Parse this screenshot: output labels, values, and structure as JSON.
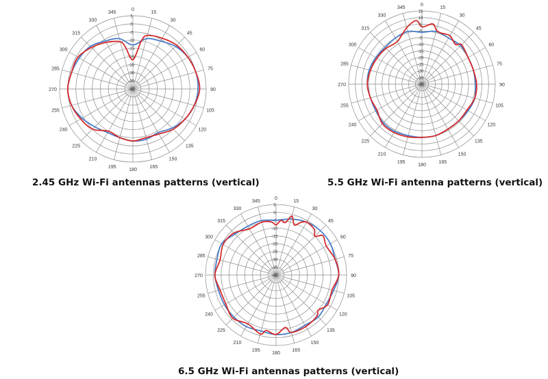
{
  "colors": {
    "series_a": "#4a7ec8",
    "series_b": "#d42a2a",
    "grid": "#8a8a8a",
    "label": "#333333"
  },
  "chart_data": [
    {
      "type": "polar-line",
      "title": "2.45 GHz Wi-Fi antennas patterns (vertical)",
      "angle_ticks": [
        "0",
        "15",
        "30",
        "45",
        "60",
        "75",
        "90",
        "105",
        "120",
        "135",
        "150",
        "165",
        "180",
        "195",
        "210",
        "225",
        "240",
        "255",
        "270",
        "285",
        "300",
        "315",
        "330",
        "345"
      ],
      "radial_ticks": [
        "5",
        "0",
        "-5",
        "-10",
        "-15",
        "-20",
        "-25",
        "-30",
        "-35",
        "-40"
      ],
      "radial_range": [
        -40,
        5
      ],
      "legend": "none",
      "series": [
        {
          "color": "series_a",
          "angles": [
            0,
            15,
            30,
            45,
            60,
            75,
            90,
            105,
            120,
            135,
            150,
            165,
            180,
            195,
            210,
            225,
            240,
            255,
            270,
            285,
            300,
            315,
            330,
            345
          ],
          "values": [
            -13,
            -8,
            -6,
            -3,
            -1,
            0,
            0,
            -1,
            -3,
            -6,
            -9,
            -8,
            -8,
            -9,
            -9,
            -7,
            -4,
            -1,
            0,
            -1,
            -2,
            -3,
            -6,
            -8
          ]
        },
        {
          "color": "series_b",
          "angles": [
            0,
            10,
            15,
            30,
            45,
            60,
            75,
            90,
            105,
            120,
            135,
            150,
            165,
            180,
            195,
            210,
            225,
            240,
            255,
            270,
            285,
            300,
            315,
            330,
            345,
            350
          ],
          "values": [
            -22,
            -10,
            -6,
            -4,
            -2,
            -1,
            0,
            1,
            -1,
            -3,
            -5,
            -8,
            -9,
            -8,
            -9,
            -10,
            -5,
            -3,
            -1,
            0,
            -1,
            -1,
            -4,
            -7,
            -10,
            -14
          ]
        }
      ]
    },
    {
      "type": "polar-line",
      "title": "5.5 GHz Wi-Fi antenna patterns (vertical)",
      "angle_ticks": [
        "0",
        "15",
        "30",
        "45",
        "60",
        "75",
        "90",
        "105",
        "120",
        "135",
        "150",
        "165",
        "180",
        "195",
        "210",
        "225",
        "240",
        "255",
        "270",
        "285",
        "300",
        "315",
        "330",
        "345"
      ],
      "radial_ticks": [
        "15",
        "10",
        "5",
        "0",
        "-5",
        "-10",
        "-15",
        "-20",
        "-25",
        "-30",
        "-35",
        "-40"
      ],
      "radial_range": [
        -40,
        15
      ],
      "legend": "none",
      "series": [
        {
          "color": "series_a",
          "angles": [
            0,
            15,
            30,
            45,
            60,
            75,
            90,
            105,
            120,
            135,
            150,
            165,
            180,
            195,
            210,
            225,
            240,
            255,
            270,
            285,
            300,
            315,
            330,
            345
          ],
          "values": [
            -1,
            1,
            0,
            1,
            0,
            0,
            0,
            1,
            0,
            -1,
            -1,
            0,
            0,
            0,
            1,
            1,
            0,
            0,
            1,
            1,
            0,
            -1,
            0,
            1
          ]
        },
        {
          "color": "series_b",
          "angles": [
            0,
            10,
            15,
            20,
            30,
            40,
            45,
            60,
            75,
            90,
            105,
            120,
            135,
            150,
            165,
            180,
            195,
            210,
            225,
            240,
            255,
            270,
            285,
            300,
            315,
            330,
            345,
            355
          ],
          "values": [
            3,
            6,
            2,
            1,
            2,
            -1,
            2,
            0,
            0,
            1,
            1,
            -1,
            -1,
            -1,
            0,
            0,
            1,
            2,
            2,
            -1,
            0,
            1,
            0,
            -1,
            -2,
            -3,
            4,
            8
          ]
        }
      ]
    },
    {
      "type": "polar-line",
      "title": "6.5 GHz Wi-Fi antennas patterns (vertical)",
      "angle_ticks": [
        "0",
        "15",
        "30",
        "45",
        "60",
        "75",
        "90",
        "105",
        "120",
        "135",
        "150",
        "165",
        "180",
        "195",
        "210",
        "225",
        "240",
        "255",
        "270",
        "285",
        "300",
        "315",
        "330",
        "345"
      ],
      "radial_ticks": [
        "5",
        "0",
        "-5",
        "-10",
        "-15",
        "-20",
        "-25",
        "-30",
        "-35",
        "-40"
      ],
      "radial_range": [
        -40,
        5
      ],
      "legend": "none",
      "series": [
        {
          "color": "series_a",
          "angles": [
            0,
            15,
            30,
            45,
            60,
            75,
            90,
            105,
            120,
            135,
            150,
            165,
            180,
            195,
            210,
            225,
            240,
            255,
            270,
            285,
            300,
            315,
            330,
            345
          ],
          "values": [
            -5,
            -3,
            -1,
            0,
            0,
            -1,
            0,
            -2,
            -3,
            -2,
            -3,
            -2,
            -2,
            -3,
            -2,
            -2,
            -2,
            -2,
            -1,
            -1,
            0,
            -3,
            -4,
            -4
          ]
        },
        {
          "color": "series_b",
          "angles": [
            0,
            5,
            10,
            15,
            20,
            25,
            30,
            40,
            45,
            50,
            60,
            75,
            90,
            105,
            120,
            130,
            135,
            150,
            165,
            170,
            180,
            190,
            195,
            210,
            225,
            240,
            255,
            270,
            285,
            300,
            315,
            330,
            345,
            355
          ],
          "values": [
            -8,
            -5,
            -6,
            -1,
            -6,
            -3,
            -1,
            -2,
            -5,
            -1,
            -3,
            -1,
            0,
            -3,
            -2,
            -5,
            -3,
            -2,
            -2,
            -6,
            -2,
            -4,
            -1,
            -4,
            -1,
            -3,
            -3,
            -1,
            -3,
            -1,
            -2,
            -6,
            -5,
            -6
          ]
        }
      ]
    }
  ]
}
